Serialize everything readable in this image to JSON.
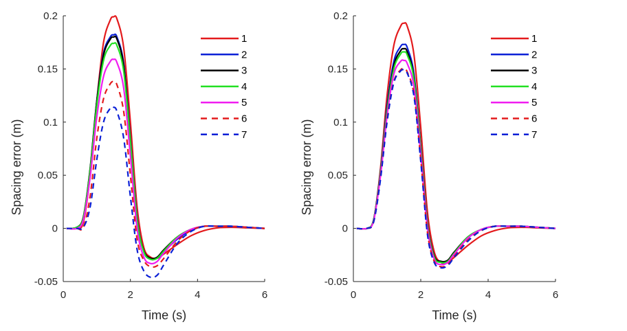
{
  "chart_data": [
    {
      "type": "line",
      "title": "",
      "xlabel": "Time (s)",
      "ylabel": "Spacing error (m)",
      "xlim": [
        0,
        6
      ],
      "ylim": [
        -0.05,
        0.2
      ],
      "xticks": [
        "0",
        "2",
        "4",
        "6"
      ],
      "yticks": [
        "-0.05",
        "0",
        "0.05",
        "0.1",
        "0.15",
        "0.2"
      ],
      "grid": false,
      "legend_position": "top-right",
      "x": [
        0.1,
        0.4,
        0.6,
        0.8,
        1.0,
        1.2,
        1.4,
        1.5,
        1.6,
        1.8,
        2.0,
        2.2,
        2.4,
        2.6,
        2.8,
        3.0,
        3.4,
        3.8,
        4.2,
        4.6,
        5.0,
        5.5,
        6.0
      ],
      "series": [
        {
          "name": "1",
          "color": "#e31a1c",
          "dash": "solid",
          "values": [
            0,
            0.0,
            0.006,
            0.05,
            0.12,
            0.175,
            0.196,
            0.199,
            0.197,
            0.17,
            0.1,
            0.02,
            -0.018,
            -0.027,
            -0.028,
            -0.024,
            -0.015,
            -0.007,
            -0.002,
            0.0005,
            0.001,
            0.0005,
            0
          ]
        },
        {
          "name": "2",
          "color": "#0a1fd6",
          "dash": "solid",
          "values": [
            0,
            0.001,
            0.01,
            0.055,
            0.12,
            0.165,
            0.18,
            0.182,
            0.18,
            0.155,
            0.085,
            0.01,
            -0.022,
            -0.029,
            -0.028,
            -0.022,
            -0.01,
            -0.002,
            0.002,
            0.002,
            0.002,
            0.001,
            0
          ]
        },
        {
          "name": "3",
          "color": "#000000",
          "dash": "solid",
          "values": [
            0,
            0.001,
            0.011,
            0.056,
            0.12,
            0.163,
            0.178,
            0.18,
            0.178,
            0.153,
            0.083,
            0.008,
            -0.021,
            -0.028,
            -0.027,
            -0.02,
            -0.008,
            -0.001,
            0.002,
            0.002,
            0.002,
            0.001,
            0
          ]
        },
        {
          "name": "4",
          "color": "#22e022",
          "dash": "solid",
          "values": [
            0,
            0.001,
            0.01,
            0.054,
            0.116,
            0.158,
            0.172,
            0.174,
            0.172,
            0.148,
            0.082,
            0.008,
            -0.022,
            -0.029,
            -0.028,
            -0.021,
            -0.008,
            -0.001,
            0.002,
            0.002,
            0.002,
            0.001,
            0
          ]
        },
        {
          "name": "5",
          "color": "#f01cf0",
          "dash": "solid",
          "values": [
            0,
            0.0,
            0.008,
            0.048,
            0.105,
            0.143,
            0.157,
            0.159,
            0.156,
            0.132,
            0.068,
            0.0,
            -0.027,
            -0.033,
            -0.031,
            -0.023,
            -0.009,
            -0.001,
            0.002,
            0.002,
            0.002,
            0.001,
            0
          ]
        },
        {
          "name": "6",
          "color": "#e31a1c",
          "dash": "dashed",
          "values": [
            0,
            0.0,
            0.001,
            0.03,
            0.085,
            0.122,
            0.136,
            0.138,
            0.135,
            0.11,
            0.05,
            -0.01,
            -0.03,
            -0.036,
            -0.035,
            -0.028,
            -0.012,
            -0.002,
            0.002,
            0.002,
            0.002,
            0.001,
            0
          ]
        },
        {
          "name": "7",
          "color": "#0a1fd6",
          "dash": "dashed",
          "values": [
            0,
            0.0,
            0.001,
            0.02,
            0.065,
            0.1,
            0.113,
            0.114,
            0.11,
            0.085,
            0.03,
            -0.02,
            -0.04,
            -0.046,
            -0.044,
            -0.034,
            -0.014,
            -0.003,
            0.002,
            0.002,
            0.002,
            0.001,
            0
          ]
        }
      ]
    },
    {
      "type": "line",
      "title": "",
      "xlabel": "Time (s)",
      "ylabel": "Spacing error (m)",
      "xlim": [
        0,
        6
      ],
      "ylim": [
        -0.05,
        0.2
      ],
      "xticks": [
        "0",
        "2",
        "4",
        "6"
      ],
      "yticks": [
        "-0.05",
        "0",
        "0.05",
        "0.1",
        "0.15",
        "0.2"
      ],
      "grid": false,
      "legend_position": "top-right",
      "x": [
        0.1,
        0.4,
        0.6,
        0.8,
        1.0,
        1.2,
        1.4,
        1.5,
        1.6,
        1.8,
        2.0,
        2.2,
        2.4,
        2.6,
        2.8,
        3.0,
        3.4,
        3.8,
        4.2,
        4.6,
        5.0,
        5.5,
        6.0
      ],
      "series": [
        {
          "name": "1",
          "color": "#e31a1c",
          "dash": "solid",
          "values": [
            0,
            0.0,
            0.008,
            0.055,
            0.125,
            0.172,
            0.19,
            0.193,
            0.19,
            0.163,
            0.095,
            0.015,
            -0.022,
            -0.032,
            -0.032,
            -0.027,
            -0.016,
            -0.007,
            -0.002,
            0.0005,
            0.001,
            0.0005,
            0
          ]
        },
        {
          "name": "2",
          "color": "#0a1fd6",
          "dash": "solid",
          "values": [
            0,
            0.0,
            0.008,
            0.052,
            0.115,
            0.157,
            0.171,
            0.173,
            0.17,
            0.145,
            0.078,
            0.005,
            -0.026,
            -0.032,
            -0.031,
            -0.023,
            -0.009,
            -0.001,
            0.002,
            0.002,
            0.002,
            0.001,
            0
          ]
        },
        {
          "name": "3",
          "color": "#000000",
          "dash": "solid",
          "values": [
            0,
            0.0,
            0.008,
            0.051,
            0.112,
            0.153,
            0.167,
            0.169,
            0.166,
            0.142,
            0.076,
            0.004,
            -0.026,
            -0.031,
            -0.03,
            -0.022,
            -0.008,
            -0.001,
            0.002,
            0.002,
            0.002,
            0.001,
            0
          ]
        },
        {
          "name": "4",
          "color": "#22e022",
          "dash": "solid",
          "values": [
            0,
            0.0,
            0.008,
            0.05,
            0.11,
            0.15,
            0.164,
            0.166,
            0.163,
            0.14,
            0.075,
            0.003,
            -0.027,
            -0.032,
            -0.031,
            -0.023,
            -0.008,
            -0.001,
            0.002,
            0.002,
            0.002,
            0.001,
            0
          ]
        },
        {
          "name": "5",
          "color": "#f01cf0",
          "dash": "solid",
          "values": [
            0,
            0.0,
            0.007,
            0.048,
            0.106,
            0.145,
            0.157,
            0.158,
            0.155,
            0.133,
            0.07,
            0.0,
            -0.029,
            -0.034,
            -0.032,
            -0.024,
            -0.009,
            -0.001,
            0.002,
            0.002,
            0.002,
            0.001,
            0
          ]
        },
        {
          "name": "6",
          "color": "#e31a1c",
          "dash": "dashed",
          "values": [
            0,
            0.0,
            0.006,
            0.046,
            0.102,
            0.138,
            0.149,
            0.15,
            0.147,
            0.126,
            0.065,
            -0.004,
            -0.031,
            -0.036,
            -0.034,
            -0.026,
            -0.011,
            -0.002,
            0.002,
            0.002,
            0.002,
            0.001,
            0
          ]
        },
        {
          "name": "7",
          "color": "#0a1fd6",
          "dash": "dashed",
          "values": [
            0,
            0.0,
            0.006,
            0.045,
            0.1,
            0.137,
            0.148,
            0.149,
            0.146,
            0.124,
            0.063,
            -0.006,
            -0.032,
            -0.037,
            -0.035,
            -0.027,
            -0.012,
            -0.002,
            0.002,
            0.002,
            0.002,
            0.001,
            0
          ]
        }
      ]
    }
  ]
}
